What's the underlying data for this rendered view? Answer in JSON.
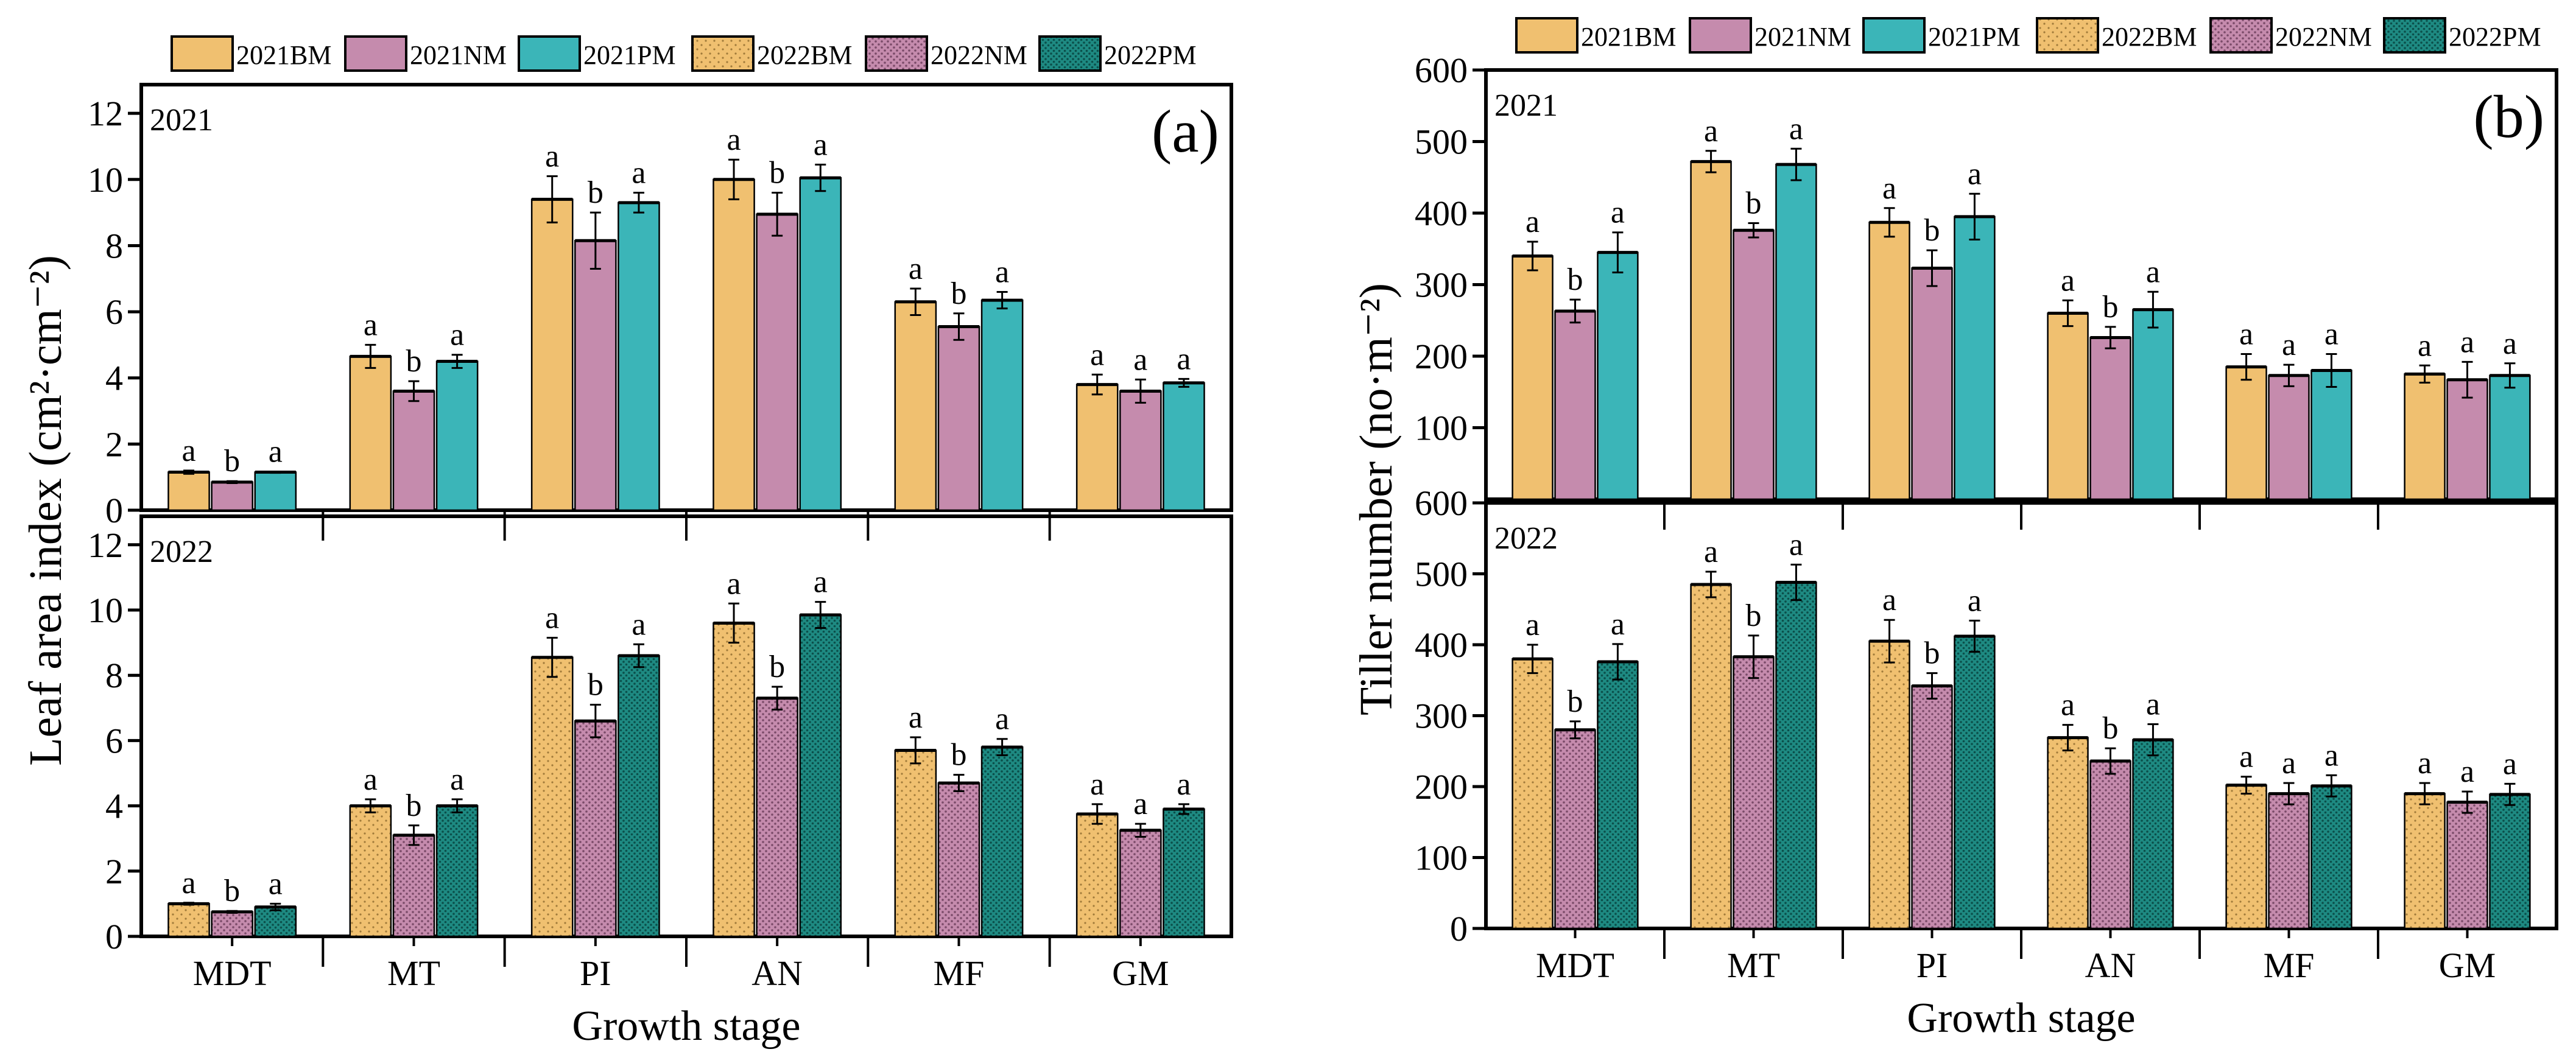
{
  "legend": [
    "2021BM",
    "2021NM",
    "2021PM",
    "2022BM",
    "2022NM",
    "2022PM"
  ],
  "colors": {
    "BM": "#f0c070",
    "NM": "#c58bad",
    "PM": "#3bb5b8",
    "PM2022": "#1e8a82",
    "axis": "#000000"
  },
  "chart_data": [
    {
      "type": "bar",
      "panel_label": "(a)",
      "ylabel": "Leaf area index (cm²·cm⁻²)",
      "xlabel": "Growth stage",
      "categories": [
        "MDT",
        "MT",
        "PI",
        "AN",
        "MF",
        "GM"
      ],
      "ylim": [
        0,
        12.5
      ],
      "yticks": [
        "0",
        "2",
        "4",
        "6",
        "8",
        "10",
        "12"
      ],
      "subpanels": [
        {
          "year_label": "2021",
          "series": [
            {
              "name": "2021BM",
              "values": [
                1.15,
                4.65,
                9.4,
                10.0,
                6.3,
                3.8
              ],
              "errors": [
                0.05,
                0.35,
                0.7,
                0.6,
                0.4,
                0.3
              ]
            },
            {
              "name": "2021NM",
              "values": [
                0.85,
                3.6,
                8.15,
                8.95,
                5.55,
                3.6
              ],
              "errors": [
                0.03,
                0.3,
                0.85,
                0.65,
                0.4,
                0.35
              ]
            },
            {
              "name": "2021PM",
              "values": [
                1.15,
                4.5,
                9.3,
                10.05,
                6.35,
                3.85
              ],
              "errors": [
                0.02,
                0.2,
                0.3,
                0.4,
                0.25,
                0.12
              ]
            }
          ],
          "letters": [
            [
              "a",
              "b",
              "a"
            ],
            [
              "a",
              "b",
              "a"
            ],
            [
              "a",
              "b",
              "a"
            ],
            [
              "a",
              "b",
              "a"
            ],
            [
              "a",
              "b",
              "a"
            ],
            [
              "a",
              "a",
              "a"
            ]
          ]
        },
        {
          "year_label": "2022",
          "series": [
            {
              "name": "2022BM",
              "values": [
                1.0,
                4.0,
                8.55,
                9.6,
                5.7,
                3.75
              ],
              "errors": [
                0.03,
                0.2,
                0.6,
                0.6,
                0.4,
                0.3
              ]
            },
            {
              "name": "2022NM",
              "values": [
                0.75,
                3.1,
                6.6,
                7.3,
                4.7,
                3.25
              ],
              "errors": [
                0.03,
                0.3,
                0.5,
                0.35,
                0.25,
                0.2
              ]
            },
            {
              "name": "2022PM",
              "values": [
                0.9,
                4.0,
                8.6,
                9.85,
                5.8,
                3.9
              ],
              "errors": [
                0.1,
                0.2,
                0.35,
                0.4,
                0.25,
                0.15
              ]
            }
          ],
          "letters": [
            [
              "a",
              "b",
              "a"
            ],
            [
              "a",
              "b",
              "a"
            ],
            [
              "a",
              "b",
              "a"
            ],
            [
              "a",
              "b",
              "a"
            ],
            [
              "a",
              "b",
              "a"
            ],
            [
              "a",
              "a",
              "a"
            ]
          ]
        }
      ]
    },
    {
      "type": "bar",
      "panel_label": "(b)",
      "ylabel": "Tiller number (no·m⁻²)",
      "xlabel": "Growth stage",
      "categories": [
        "MDT",
        "MT",
        "PI",
        "AN",
        "MF",
        "GM"
      ],
      "ylim": [
        0,
        600
      ],
      "yticks": [
        "0",
        "100",
        "200",
        "300",
        "400",
        "500",
        "600"
      ],
      "subpanels": [
        {
          "year_label": "2021",
          "series": [
            {
              "name": "2021BM",
              "values": [
                340,
                472,
                387,
                260,
                185,
                175
              ],
              "errors": [
                20,
                15,
                20,
                18,
                18,
                12
              ]
            },
            {
              "name": "2021NM",
              "values": [
                263,
                376,
                323,
                226,
                173,
                167
              ],
              "errors": [
                16,
                10,
                25,
                15,
                15,
                25
              ]
            },
            {
              "name": "2021PM",
              "values": [
                345,
                468,
                395,
                265,
                180,
                173
              ],
              "errors": [
                28,
                22,
                32,
                25,
                23,
                17
              ]
            }
          ],
          "letters": [
            [
              "a",
              "b",
              "a"
            ],
            [
              "a",
              "b",
              "a"
            ],
            [
              "a",
              "b",
              "a"
            ],
            [
              "a",
              "b",
              "a"
            ],
            [
              "a",
              "a",
              "a"
            ],
            [
              "a",
              "a",
              "a"
            ]
          ]
        },
        {
          "year_label": "2022",
          "series": [
            {
              "name": "2022BM",
              "values": [
                380,
                485,
                405,
                269,
                202,
                190
              ],
              "errors": [
                20,
                18,
                30,
                18,
                12,
                15
              ]
            },
            {
              "name": "2022NM",
              "values": [
                280,
                383,
                342,
                236,
                190,
                178
              ],
              "errors": [
                12,
                30,
                18,
                18,
                15,
                15
              ]
            },
            {
              "name": "2022PM",
              "values": [
                376,
                488,
                412,
                266,
                201,
                189
              ],
              "errors": [
                25,
                25,
                22,
                22,
                15,
                15
              ]
            }
          ],
          "letters": [
            [
              "a",
              "b",
              "a"
            ],
            [
              "a",
              "b",
              "a"
            ],
            [
              "a",
              "b",
              "a"
            ],
            [
              "a",
              "b",
              "a"
            ],
            [
              "a",
              "a",
              "a"
            ],
            [
              "a",
              "a",
              "a"
            ]
          ]
        }
      ]
    }
  ]
}
